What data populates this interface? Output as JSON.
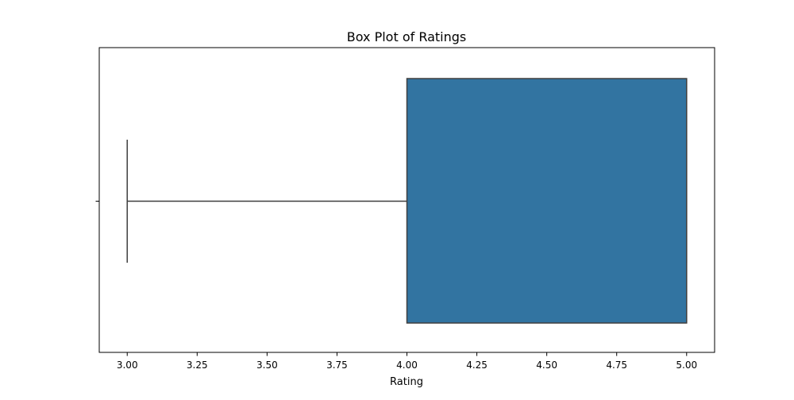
{
  "chart_data": {
    "type": "box",
    "title": "Box Plot of Ratings",
    "xlabel": "Rating",
    "ylabel": "",
    "orientation": "horizontal",
    "xlim": [
      2.9,
      5.1
    ],
    "xticks": [
      3.0,
      3.25,
      3.5,
      3.75,
      4.0,
      4.25,
      4.5,
      4.75,
      5.0
    ],
    "xtick_labels": [
      "3.00",
      "3.25",
      "3.50",
      "3.75",
      "4.00",
      "4.25",
      "4.50",
      "4.75",
      "5.00"
    ],
    "grid": false,
    "box": {
      "whisker_low": 3.0,
      "q1": 4.0,
      "median": 5.0,
      "q3": 5.0,
      "whisker_high": 5.0
    },
    "colors": {
      "box_fill": "#3274a1",
      "line": "#3f3f3f",
      "axes": "#000000"
    }
  }
}
